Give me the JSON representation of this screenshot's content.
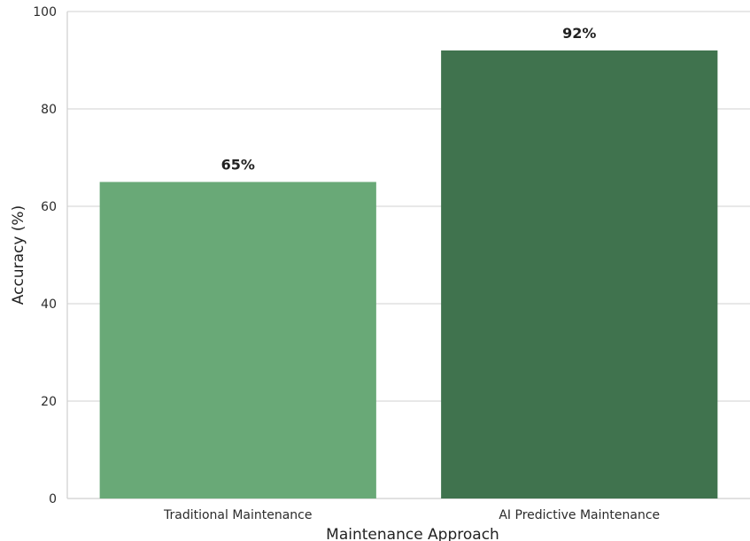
{
  "chart_data": {
    "type": "bar",
    "title": "",
    "xlabel": "Maintenance Approach",
    "ylabel": "Accuracy (%)",
    "ylim": [
      0,
      100
    ],
    "yticks": [
      "0",
      "20",
      "40",
      "60",
      "80",
      "100"
    ],
    "grid": "horizontal",
    "categories": [
      "Traditional Maintenance",
      "AI Predictive Maintenance"
    ],
    "values": [
      65,
      92
    ],
    "data_labels": [
      "65%",
      "92%"
    ],
    "colors": [
      "#69a977",
      "#40734e"
    ]
  }
}
